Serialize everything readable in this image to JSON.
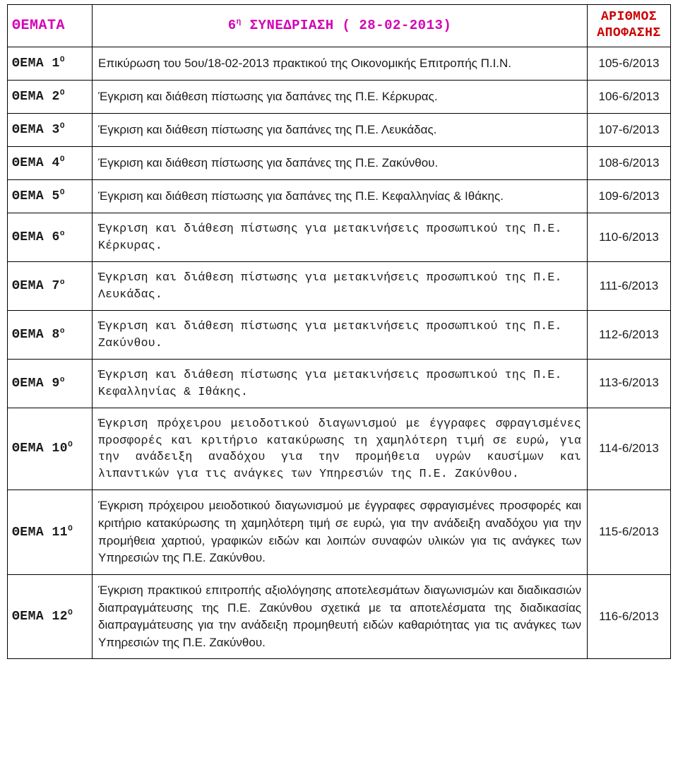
{
  "colors": {
    "header_pink": "#d500b7",
    "header_red": "#cc0000",
    "text": "#1a1a1a",
    "border": "#000000",
    "background": "#ffffff"
  },
  "typography": {
    "mono_family": "Courier New",
    "sans_family": "Arial",
    "header_size_pt": 14,
    "body_size_pt": 12.5
  },
  "header": {
    "col1": "ΘΕΜΑΤΑ",
    "col2_prefix": "6",
    "col2_sup": "η",
    "col2_rest": " ΣΥΝΕΔΡΙΑΣΗ ( 28-02-2013)",
    "col3_line1": "ΑΡΙΘΜΟΣ",
    "col3_line2": "ΑΠΟΦΑΣΗΣ"
  },
  "rows": [
    {
      "label_main": "ΘΕΜΑ 1",
      "label_sup": "Ο",
      "desc": "Επικύρωση του 5ου/18-02-2013 πρακτικού της Οικονομικής Επιτροπής Π.Ι.Ν.",
      "num": "105-6/2013",
      "desc_style": "sans",
      "justify": false
    },
    {
      "label_main": "ΘΕΜΑ 2",
      "label_sup": "Ο",
      "desc": "Έγκριση και διάθεση πίστωσης για δαπάνες της Π.Ε. Κέρκυρας.",
      "num": "106-6/2013",
      "desc_style": "sans",
      "justify": false
    },
    {
      "label_main": "ΘΕΜΑ 3",
      "label_sup": "Ο",
      "desc": "Έγκριση και διάθεση πίστωσης για δαπάνες της Π.Ε. Λευκάδας.",
      "num": "107-6/2013",
      "desc_style": "sans",
      "justify": false
    },
    {
      "label_main": "ΘΕΜΑ 4",
      "label_sup": "Ο",
      "desc": "Έγκριση και διάθεση πίστωσης για δαπάνες της Π.Ε. Ζακύνθου.",
      "num": "108-6/2013",
      "desc_style": "sans",
      "justify": false
    },
    {
      "label_main": "ΘΕΜΑ 5",
      "label_sup": "Ο",
      "desc": "Έγκριση και διάθεση πίστωσης για δαπάνες της Π.Ε. Κεφαλληνίας & Ιθάκης.",
      "num": "109-6/2013",
      "desc_style": "sans",
      "justify": false
    },
    {
      "label_main": "ΘΕΜΑ 6",
      "label_sup": "ο",
      "desc": "Έγκριση και διάθεση πίστωσης για μετακινήσεις προσωπικού της Π.Ε. Κέρκυρας.",
      "num": "110-6/2013",
      "desc_style": "mono",
      "justify": false
    },
    {
      "label_main": "ΘΕΜΑ 7",
      "label_sup": "ο",
      "desc": "Έγκριση και διάθεση πίστωσης για μετακινήσεις προσωπικού της Π.Ε. Λευκάδας.",
      "num": "111-6/2013",
      "desc_style": "mono",
      "justify": false
    },
    {
      "label_main": "ΘΕΜΑ 8",
      "label_sup": "ο",
      "desc": "Έγκριση και διάθεση πίστωσης για μετακινήσεις προσωπικού της Π.Ε. Ζακύνθου.",
      "num": "112-6/2013",
      "desc_style": "mono",
      "justify": false
    },
    {
      "label_main": "ΘΕΜΑ 9",
      "label_sup": "ο",
      "desc": "Έγκριση και διάθεση πίστωσης για μετακινήσεις προσωπικού της Π.Ε. Κεφαλληνίας & Ιθάκης.",
      "num": "113-6/2013",
      "desc_style": "mono",
      "justify": false
    },
    {
      "label_main": "ΘΕΜΑ 10",
      "label_sup": "Ο",
      "desc": "Έγκριση πρόχειρου μειοδοτικού διαγωνισμού με έγγραφες σφραγισμένες προσφορές και κριτήριο κατακύρωσης τη χαμηλότερη τιμή σε ευρώ, για την ανάδειξη αναδόχου για την προμήθεια υγρών καυσίμων και λιπαντικών για τις ανάγκες των Υπηρεσιών της Π.Ε. Ζακύνθου.",
      "num": "114-6/2013",
      "desc_style": "mono",
      "justify": true
    },
    {
      "label_main": "ΘΕΜΑ 11",
      "label_sup": "Ο",
      "desc": "Έγκριση πρόχειρου μειοδοτικού διαγωνισμού με έγγραφες σφραγισμένες προσφορές και κριτήριο κατακύρωσης τη χαμηλότερη τιμή σε ευρώ, για την ανάδειξη αναδόχου για την προμήθεια χαρτιού, γραφικών ειδών και λοιπών συναφών υλικών για τις ανάγκες των Υπηρεσιών της Π.Ε. Ζακύνθου.",
      "num": "115-6/2013",
      "desc_style": "sans",
      "justify": true
    },
    {
      "label_main": "ΘΕΜΑ 12",
      "label_sup": "Ο",
      "desc": "Έγκριση πρακτικού επιτροπής αξιολόγησης αποτελεσμάτων διαγωνισμών και διαδικασιών διαπραγμάτευσης της Π.Ε. Ζακύνθου σχετικά με τα αποτελέσματα της διαδικασίας διαπραγμάτευσης για την ανάδειξη προμηθευτή ειδών καθαριότητας για τις ανάγκες των Υπηρεσιών της Π.Ε. Ζακύνθου.",
      "num": "116-6/2013",
      "desc_style": "sans",
      "justify": true
    }
  ]
}
